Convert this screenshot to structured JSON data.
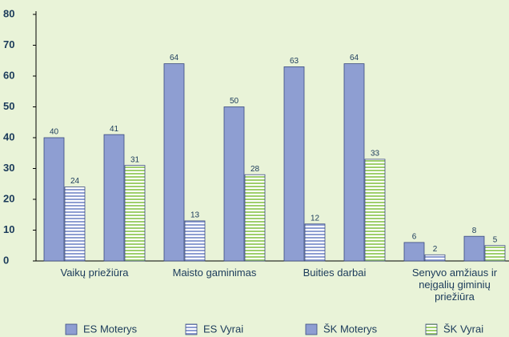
{
  "chart_data": {
    "type": "bar",
    "categories": [
      "Vaikų priežiūra",
      "Maisto gaminimas",
      "Buities darbai",
      "Senyvo amžiaus ir neįgalių giminių priežiūra"
    ],
    "series": [
      {
        "name": "ES Moterys",
        "color": "#8e9ed2",
        "values": [
          40,
          64,
          63,
          6
        ]
      },
      {
        "name": "ES Vyrai",
        "color": "#8e9ed2",
        "pattern": "stripes",
        "values": [
          24,
          13,
          12,
          2
        ]
      },
      {
        "name": "ŠK Moterys",
        "color": "#8e9ed2",
        "values": [
          41,
          50,
          64,
          8
        ]
      },
      {
        "name": "ŠK Vyrai",
        "color": "#9fcf6c",
        "pattern": "stripes",
        "values": [
          31,
          28,
          33,
          5
        ]
      }
    ],
    "ylim": [
      0,
      80
    ],
    "yticks": [
      0,
      10,
      20,
      30,
      40,
      50,
      60,
      70,
      80
    ]
  }
}
